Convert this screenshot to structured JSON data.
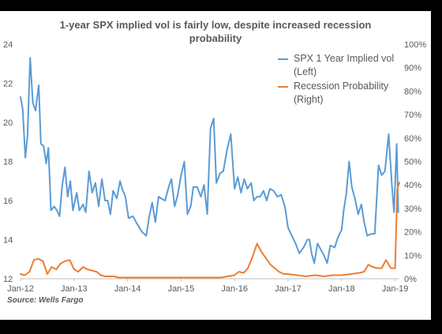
{
  "chart_data": {
    "type": "line",
    "title_lines": [
      "1-year SPX implied vol is fairly low, despite increased recession",
      "probability"
    ],
    "source": "Source: Wells Fargo",
    "x_tick_labels": [
      "Jan-12",
      "Jan-13",
      "Jan-14",
      "Jan-15",
      "Jan-16",
      "Jan-17",
      "Jan-18",
      "Jan-19"
    ],
    "x_range": [
      2012.0,
      2019.08
    ],
    "left_axis": {
      "range": [
        12,
        24
      ],
      "ticks": [
        "12",
        "14",
        "16",
        "18",
        "20",
        "22",
        "24"
      ]
    },
    "right_axis": {
      "range": [
        0,
        100
      ],
      "ticks": [
        "0%",
        "10%",
        "20%",
        "30%",
        "40%",
        "50%",
        "60%",
        "70%",
        "80%",
        "90%",
        "100%"
      ]
    },
    "grid": false,
    "legend_placement": "top-right",
    "series": [
      {
        "name": "SPX 1 Year Implied vol (Left)",
        "legend_lines": [
          "SPX 1 Year Implied vol",
          "(Left)"
        ],
        "axis": "left",
        "color": "#5B9BD5",
        "x": [
          2012.0,
          2012.04,
          2012.09,
          2012.13,
          2012.18,
          2012.23,
          2012.28,
          2012.34,
          2012.38,
          2012.43,
          2012.48,
          2012.52,
          2012.57,
          2012.63,
          2012.68,
          2012.73,
          2012.78,
          2012.83,
          2012.88,
          2012.93,
          2012.98,
          2013.05,
          2013.1,
          2013.17,
          2013.22,
          2013.28,
          2013.34,
          2013.4,
          2013.46,
          2013.52,
          2013.58,
          2013.63,
          2013.68,
          2013.73,
          2013.8,
          2013.86,
          2013.9,
          2013.96,
          2014.02,
          2014.1,
          2014.18,
          2014.27,
          2014.35,
          2014.4,
          2014.46,
          2014.52,
          2014.58,
          2014.63,
          2014.7,
          2014.78,
          2014.82,
          2014.88,
          2014.94,
          2015.0,
          2015.06,
          2015.12,
          2015.18,
          2015.23,
          2015.3,
          2015.37,
          2015.43,
          2015.49,
          2015.55,
          2015.61,
          2015.66,
          2015.73,
          2015.79,
          2015.86,
          2015.93,
          2016.0,
          2016.06,
          2016.12,
          2016.18,
          2016.24,
          2016.31,
          2016.36,
          2016.42,
          2016.48,
          2016.54,
          2016.6,
          2016.66,
          2016.73,
          2016.8,
          2016.87,
          2016.94,
          2017.0,
          2017.07,
          2017.14,
          2017.21,
          2017.29,
          2017.36,
          2017.4,
          2017.44,
          2017.49,
          2017.55,
          2017.61,
          2017.67,
          2017.73,
          2017.79,
          2017.87,
          2017.93,
          2018.0,
          2018.04,
          2018.09,
          2018.14,
          2018.19,
          2018.25,
          2018.31,
          2018.37,
          2018.42,
          2018.48,
          2018.55,
          2018.62,
          2018.69,
          2018.75,
          2018.81,
          2018.88,
          2018.94,
          2018.98,
          2019.03,
          2019.06
        ],
        "values": [
          21.3,
          20.7,
          18.2,
          19.3,
          23.3,
          21.0,
          20.6,
          21.9,
          18.9,
          18.8,
          17.9,
          18.7,
          15.5,
          15.7,
          15.5,
          15.2,
          16.8,
          17.7,
          16.2,
          17.0,
          15.5,
          16.4,
          15.5,
          15.8,
          15.4,
          17.5,
          16.4,
          16.9,
          15.7,
          17.1,
          16.0,
          16.0,
          15.3,
          16.5,
          16.1,
          17.0,
          16.6,
          16.2,
          15.1,
          15.2,
          14.8,
          14.4,
          14.2,
          15.1,
          15.9,
          14.9,
          16.2,
          16.1,
          16.0,
          16.8,
          17.1,
          15.7,
          16.3,
          17.3,
          18.0,
          15.3,
          15.7,
          16.7,
          16.7,
          16.2,
          16.8,
          15.3,
          19.7,
          20.2,
          16.9,
          17.4,
          17.5,
          18.6,
          19.4,
          16.6,
          17.2,
          16.4,
          17.1,
          16.6,
          16.9,
          16.0,
          16.2,
          16.2,
          16.5,
          16.0,
          16.6,
          16.5,
          16.2,
          16.3,
          15.7,
          14.6,
          14.2,
          13.8,
          13.3,
          13.6,
          14.0,
          14.0,
          13.3,
          12.8,
          13.8,
          13.5,
          13.2,
          12.8,
          13.7,
          13.6,
          14.1,
          14.5,
          15.5,
          16.4,
          18.0,
          16.7,
          16.1,
          15.3,
          15.8,
          14.9,
          14.2,
          14.3,
          14.3,
          17.8,
          17.3,
          17.5,
          19.4,
          16.8,
          15.4,
          18.9,
          15.4
        ]
      },
      {
        "name": "Recession Probability (Right)",
        "legend_lines": [
          "Recession Probability",
          "(Right)"
        ],
        "axis": "right",
        "color": "#ED7D31",
        "x": [
          2012.0,
          2012.08,
          2012.17,
          2012.25,
          2012.33,
          2012.42,
          2012.5,
          2012.58,
          2012.67,
          2012.75,
          2012.83,
          2012.92,
          2013.0,
          2013.08,
          2013.17,
          2013.25,
          2013.33,
          2013.42,
          2013.5,
          2013.58,
          2013.67,
          2013.75,
          2013.83,
          2013.92,
          2014.0,
          2014.25,
          2014.5,
          2014.75,
          2015.0,
          2015.25,
          2015.5,
          2015.75,
          2016.0,
          2016.08,
          2016.17,
          2016.25,
          2016.33,
          2016.42,
          2016.5,
          2016.58,
          2016.67,
          2016.75,
          2016.83,
          2016.92,
          2017.0,
          2017.17,
          2017.33,
          2017.5,
          2017.67,
          2017.83,
          2018.0,
          2018.17,
          2018.33,
          2018.42,
          2018.5,
          2018.58,
          2018.67,
          2018.75,
          2018.83,
          2018.92,
          2019.0,
          2019.04,
          2019.08
        ],
        "values": [
          2,
          1.5,
          3,
          8,
          8.5,
          7.5,
          2,
          5,
          4,
          6.5,
          7.5,
          8,
          4,
          3,
          5,
          4,
          3.5,
          3,
          1.5,
          1,
          1,
          1,
          0.5,
          0.5,
          0.5,
          0.5,
          0.5,
          0.5,
          0.5,
          0.5,
          0.5,
          0.5,
          1.5,
          3,
          2.5,
          4.5,
          9,
          15,
          11.5,
          9,
          6,
          4.5,
          3,
          2,
          2,
          1.5,
          1,
          1.5,
          1,
          1.5,
          1.5,
          2,
          2.5,
          3,
          6,
          5,
          4.5,
          4.5,
          8,
          4.5,
          4.5,
          38,
          41
        ]
      }
    ]
  }
}
